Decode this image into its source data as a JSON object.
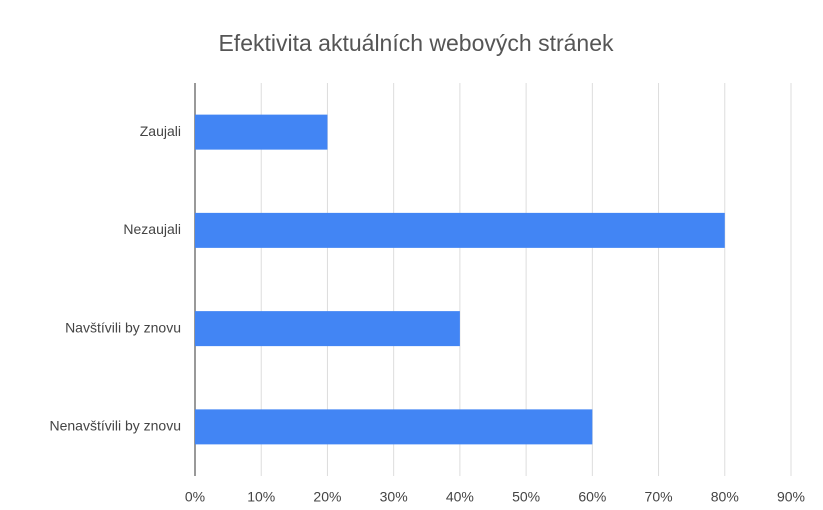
{
  "chart_data": {
    "type": "bar",
    "orientation": "horizontal",
    "title": "Efektivita aktuálních webových stránek",
    "categories": [
      "Zaujali",
      "Nezaujali",
      "Navštívili by znovu",
      "Nenavštívili by znovu"
    ],
    "values": [
      20,
      80,
      40,
      60
    ],
    "color": "#4285f4",
    "xlim": [
      0,
      90
    ],
    "xticks": [
      {
        "value": 0,
        "label": "0%"
      },
      {
        "value": 10,
        "label": "10%"
      },
      {
        "value": 20,
        "label": "20%"
      },
      {
        "value": 30,
        "label": "30%"
      },
      {
        "value": 40,
        "label": "40%"
      },
      {
        "value": 50,
        "label": "50%"
      },
      {
        "value": 60,
        "label": "60%"
      },
      {
        "value": 70,
        "label": "70%"
      },
      {
        "value": 80,
        "label": "80%"
      },
      {
        "value": 90,
        "label": "90%"
      }
    ],
    "grid": true
  }
}
